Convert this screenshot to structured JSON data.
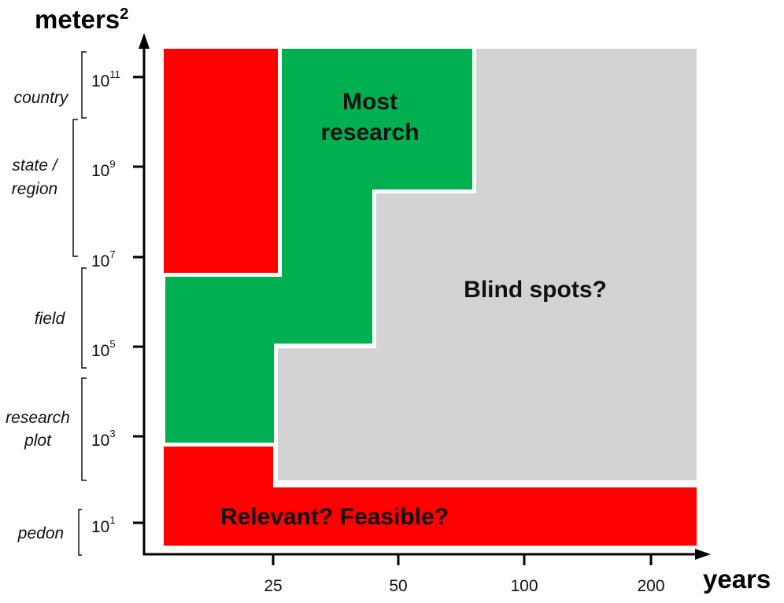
{
  "axes": {
    "y_title": {
      "text": "meters",
      "sup": "2"
    },
    "x_title": "years",
    "yticks": [
      {
        "base": "10",
        "exp": "11"
      },
      {
        "base": "10",
        "exp": "9"
      },
      {
        "base": "10",
        "exp": "7"
      },
      {
        "base": "10",
        "exp": "5"
      },
      {
        "base": "10",
        "exp": "3"
      },
      {
        "base": "10",
        "exp": "1"
      }
    ],
    "xticks": [
      "25",
      "50",
      "100",
      "200"
    ]
  },
  "scales": [
    [
      "country"
    ],
    [
      "state /",
      "region"
    ],
    [
      "field"
    ],
    [
      "research",
      "plot"
    ],
    [
      "pedon"
    ]
  ],
  "regions": {
    "most_research": [
      "Most",
      "research"
    ],
    "blind_spots": "Blind spots?",
    "relevant_feasible": "Relevant? Feasible?"
  }
}
